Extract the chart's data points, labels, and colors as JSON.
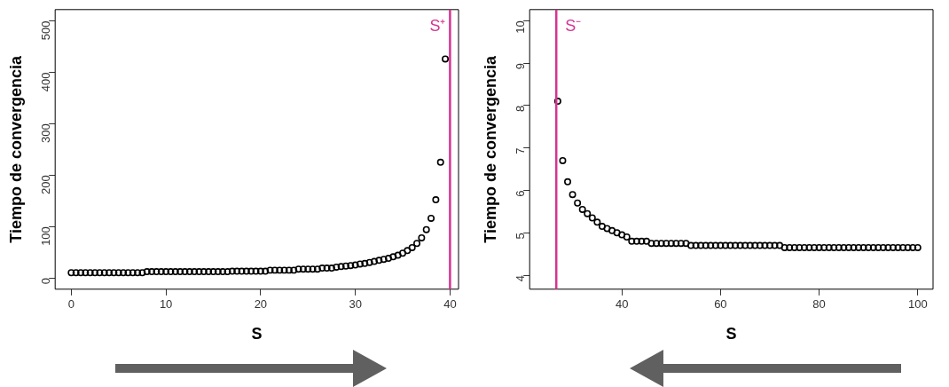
{
  "chart_data": [
    {
      "type": "scatter",
      "xlabel": "S",
      "ylabel": "Tiempo de convergencia",
      "color": "#000000",
      "marker": "circle",
      "x": [
        0,
        0.5,
        1,
        1.5,
        2,
        2.5,
        3,
        3.5,
        4,
        4.5,
        5,
        5.5,
        6,
        6.5,
        7,
        7.5,
        8,
        8.5,
        9,
        9.5,
        10,
        10.5,
        11,
        11.5,
        12,
        12.5,
        13,
        13.5,
        14,
        14.5,
        15,
        15.5,
        16,
        16.5,
        17,
        17.5,
        18,
        18.5,
        19,
        19.5,
        20,
        20.5,
        21,
        21.5,
        22,
        22.5,
        23,
        23.5,
        24,
        24.5,
        25,
        25.5,
        26,
        26.5,
        27,
        27.5,
        28,
        28.5,
        29,
        29.5,
        30,
        30.5,
        31,
        31.5,
        32,
        32.5,
        33,
        33.5,
        34,
        34.5,
        35,
        35.5,
        36,
        36.5,
        37,
        37.5,
        38,
        38.5,
        39,
        39.5
      ],
      "values": [
        10,
        10,
        10,
        10,
        10,
        10,
        10,
        10,
        10,
        10,
        10,
        10,
        10,
        10,
        10,
        10,
        12,
        12,
        12,
        12,
        12,
        12,
        12,
        12,
        12,
        12,
        12,
        12,
        12,
        12,
        12,
        12,
        12,
        12,
        13,
        13,
        13,
        13,
        13,
        13,
        13,
        13,
        15,
        15,
        15,
        15,
        15,
        15,
        17,
        17,
        17,
        17,
        17,
        19,
        19,
        19,
        21,
        22,
        23,
        24,
        25,
        27,
        28,
        30,
        32,
        34,
        36,
        38,
        41,
        44,
        48,
        53,
        59,
        67,
        78,
        94,
        116,
        152,
        225,
        426
      ],
      "xlim": [
        -1.7,
        40.9
      ],
      "ylim": [
        -22,
        522
      ],
      "xticks": [
        0,
        10,
        20,
        30,
        40
      ],
      "yticks": [
        0,
        100,
        200,
        300,
        400,
        500
      ],
      "ref_lines": [
        {
          "axis": "x",
          "value": 40,
          "label": "S⁺",
          "color": "#d6338f"
        }
      ]
    },
    {
      "type": "scatter",
      "xlabel": "S",
      "ylabel": "Tiempo de convergencia",
      "color": "#000000",
      "marker": "circle",
      "x": [
        27,
        28,
        29,
        30,
        31,
        32,
        33,
        34,
        35,
        36,
        37,
        38,
        39,
        40,
        41,
        42,
        43,
        44,
        45,
        46,
        47,
        48,
        49,
        50,
        51,
        52,
        53,
        54,
        55,
        56,
        57,
        58,
        59,
        60,
        61,
        62,
        63,
        64,
        65,
        66,
        67,
        68,
        69,
        70,
        71,
        72,
        73,
        74,
        75,
        76,
        77,
        78,
        79,
        80,
        81,
        82,
        83,
        84,
        85,
        86,
        87,
        88,
        89,
        90,
        91,
        92,
        93,
        94,
        95,
        96,
        97,
        98,
        99,
        100
      ],
      "values": [
        8.1,
        6.7,
        6.2,
        5.9,
        5.7,
        5.55,
        5.45,
        5.35,
        5.25,
        5.15,
        5.1,
        5.05,
        5.0,
        4.95,
        4.9,
        4.8,
        4.8,
        4.8,
        4.8,
        4.75,
        4.75,
        4.75,
        4.75,
        4.75,
        4.75,
        4.75,
        4.75,
        4.7,
        4.7,
        4.7,
        4.7,
        4.7,
        4.7,
        4.7,
        4.7,
        4.7,
        4.7,
        4.7,
        4.7,
        4.7,
        4.7,
        4.7,
        4.7,
        4.7,
        4.7,
        4.7,
        4.65,
        4.65,
        4.65,
        4.65,
        4.65,
        4.65,
        4.65,
        4.65,
        4.65,
        4.65,
        4.65,
        4.65,
        4.65,
        4.65,
        4.65,
        4.65,
        4.65,
        4.65,
        4.65,
        4.65,
        4.65,
        4.65,
        4.65,
        4.65,
        4.65,
        4.65,
        4.65,
        4.65
      ],
      "xlim": [
        21.3,
        103.1
      ],
      "ylim": [
        3.67,
        10.26
      ],
      "xticks": [
        40,
        60,
        80,
        100
      ],
      "yticks": [
        4,
        5,
        6,
        7,
        8,
        9,
        10
      ],
      "ref_lines": [
        {
          "axis": "x",
          "value": 26.7,
          "label": "S⁻",
          "color": "#d6338f"
        }
      ]
    }
  ]
}
